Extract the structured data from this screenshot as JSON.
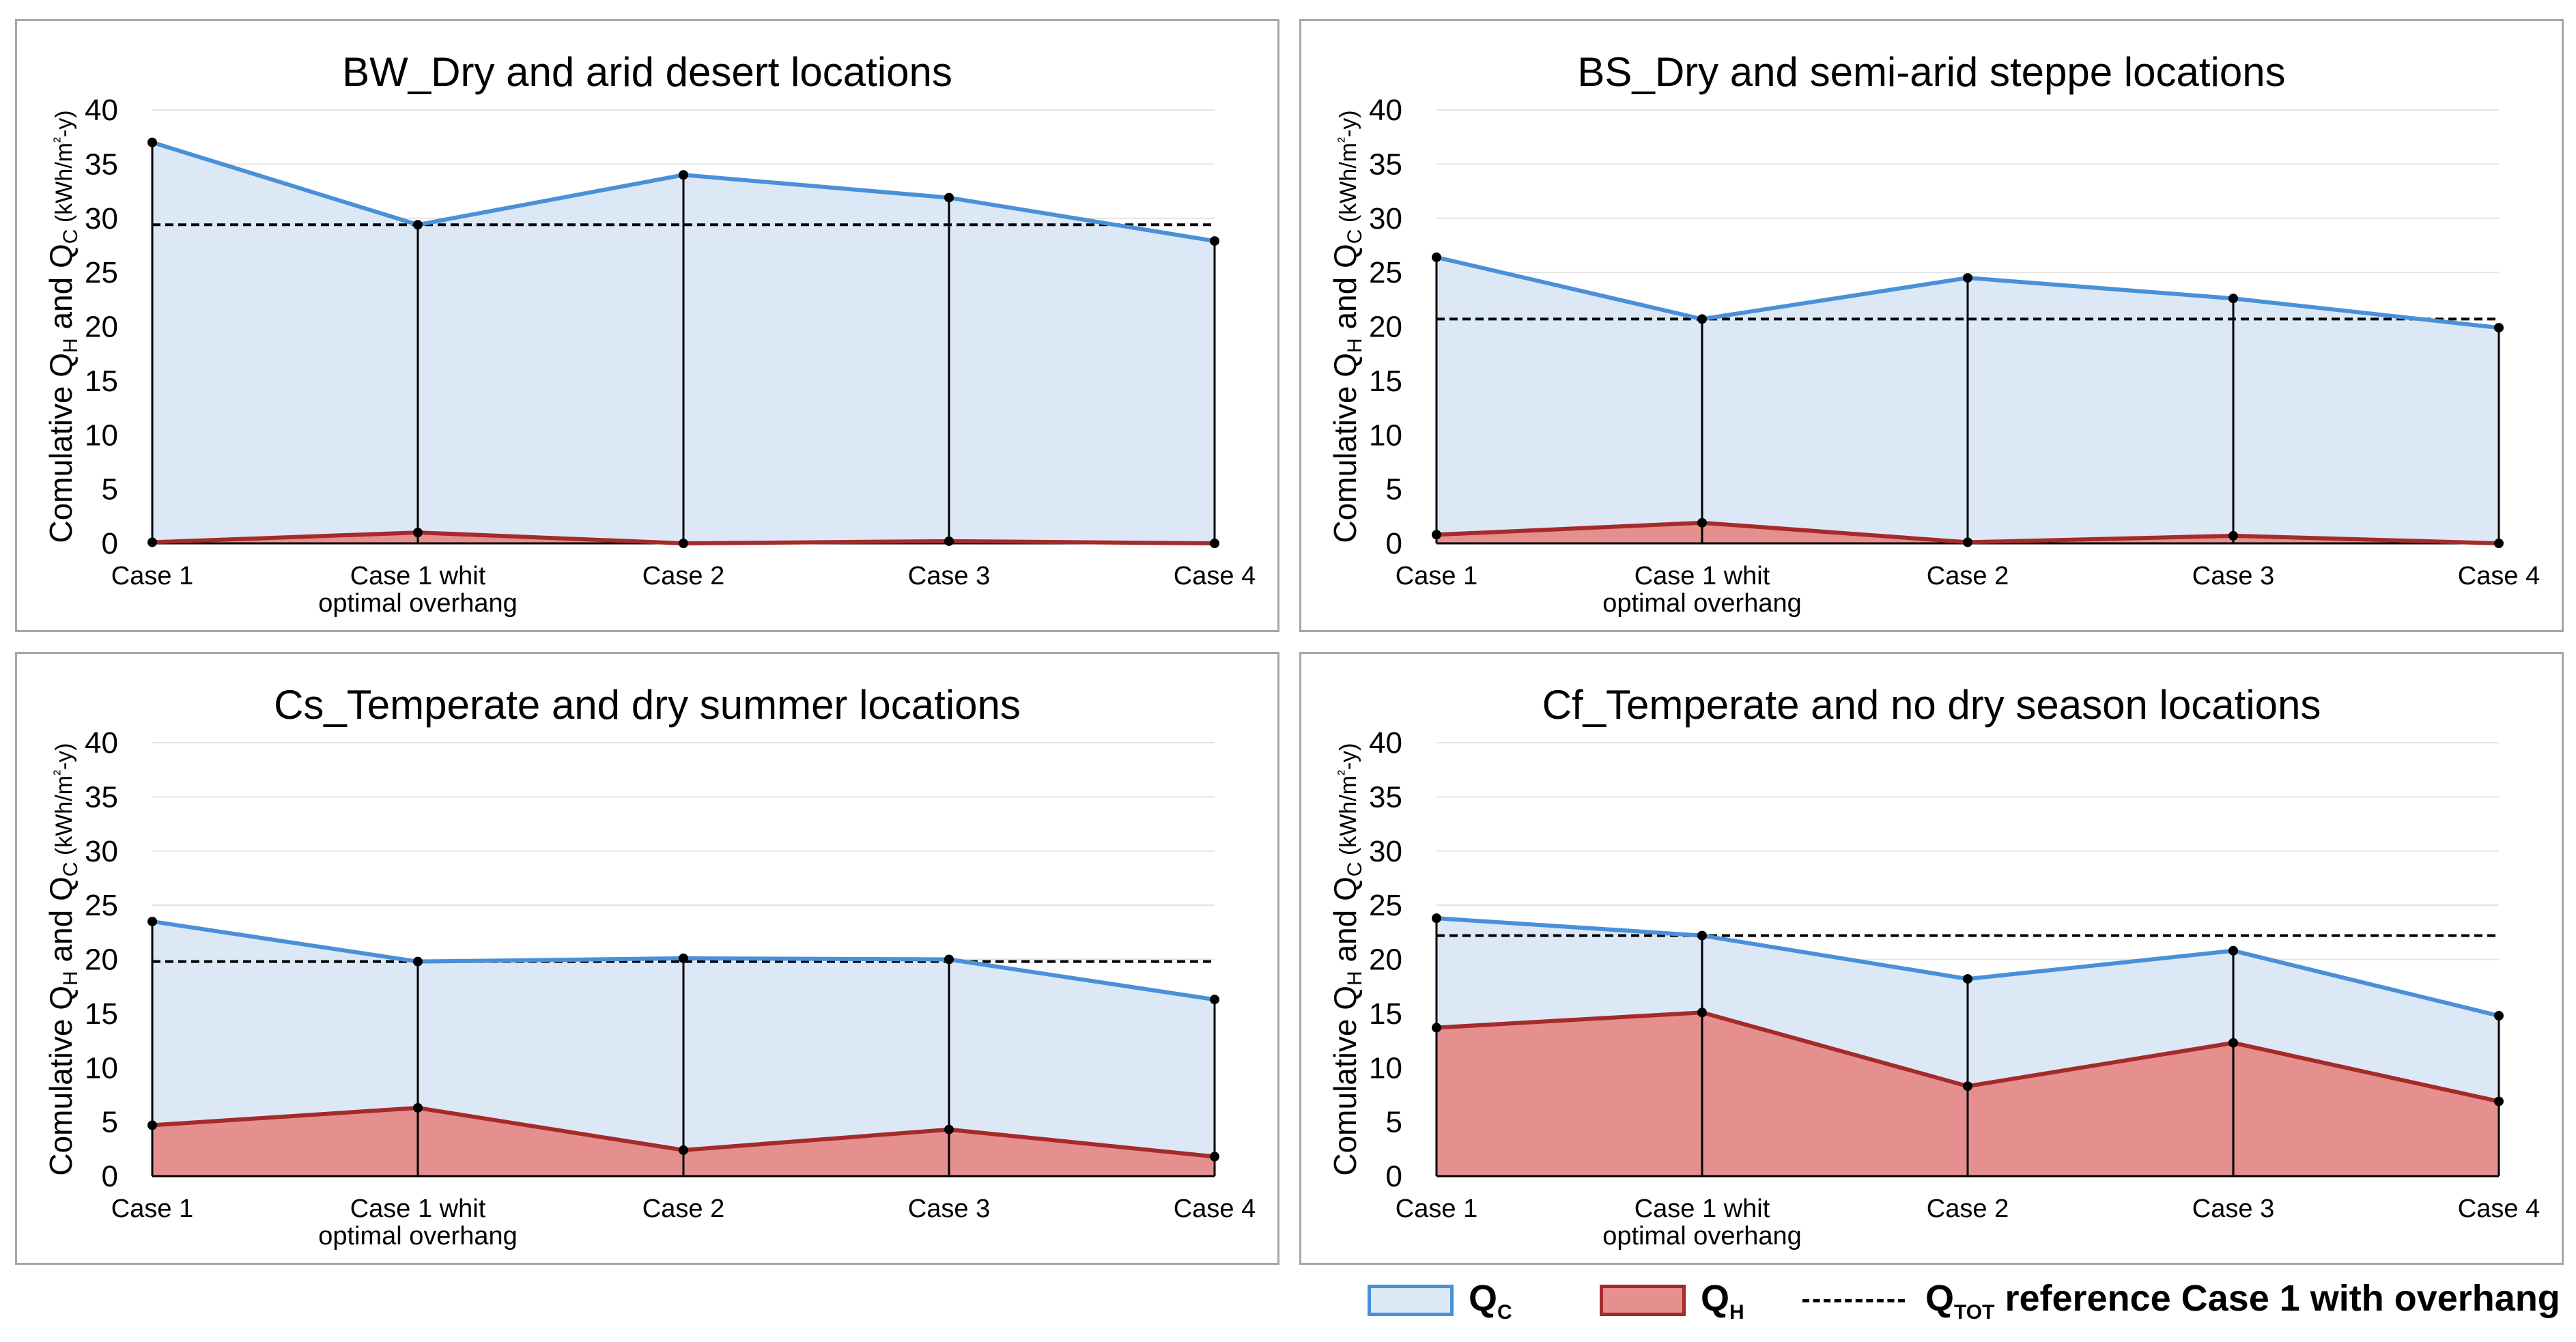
{
  "colors": {
    "qc_line": "#4a90d9",
    "qc_fill": "#dde8f6",
    "qh_line": "#a52a2a",
    "qh_fill": "#e58f8f",
    "reference": "#000000",
    "grid": "#e3e3e3",
    "border": "#a6a6a6"
  },
  "chart_data": [
    {
      "type": "area",
      "title": "BW_Dry and arid desert locations",
      "ylabel": "Comulative QH and QC (kWh/m²-y)",
      "ylabel_parts": {
        "a": "Comulative Q",
        "b": "H",
        "c": " and Q",
        "d": "C",
        "e": " (kWh/m",
        "f": "²",
        "g": "-y)"
      },
      "ylim": [
        0,
        40
      ],
      "yticks": [
        0,
        5,
        10,
        15,
        20,
        25,
        30,
        35,
        40
      ],
      "categories": [
        [
          "Case 1"
        ],
        [
          "Case 1 whit",
          "optimal overhang"
        ],
        [
          "Case 2"
        ],
        [
          "Case 3"
        ],
        [
          "Case 4"
        ]
      ],
      "series": [
        {
          "name": "QC",
          "values": [
            37.0,
            29.4,
            34.0,
            31.9,
            27.9
          ]
        },
        {
          "name": "QH",
          "values": [
            0.1,
            1.0,
            0.0,
            0.2,
            0.0
          ]
        }
      ],
      "reference": 29.4,
      "grid": true
    },
    {
      "type": "area",
      "title": "BS_Dry and semi-arid steppe locations",
      "ylabel": "Comulative QH and QC (kWh/m²-y)",
      "ylabel_parts": {
        "a": "Comulative Q",
        "b": "H",
        "c": " and Q",
        "d": "C",
        "e": " (kWh/m",
        "f": "²",
        "g": "-y)"
      },
      "ylim": [
        0,
        40
      ],
      "yticks": [
        0,
        5,
        10,
        15,
        20,
        25,
        30,
        35,
        40
      ],
      "categories": [
        [
          "Case 1"
        ],
        [
          "Case 1 whit",
          "optimal overhang"
        ],
        [
          "Case 2"
        ],
        [
          "Case 3"
        ],
        [
          "Case 4"
        ]
      ],
      "series": [
        {
          "name": "QC",
          "values": [
            26.4,
            20.7,
            24.5,
            22.6,
            19.9
          ]
        },
        {
          "name": "QH",
          "values": [
            0.8,
            1.9,
            0.1,
            0.7,
            0.0
          ]
        }
      ],
      "reference": 20.7,
      "grid": true
    },
    {
      "type": "area",
      "title": "Cs_Temperate and dry summer locations",
      "ylabel": "Comulative QH and QC (kWh/m²-y)",
      "ylabel_parts": {
        "a": "Comulative Q",
        "b": "H",
        "c": " and Q",
        "d": "C",
        "e": " (kWh/m",
        "f": "²",
        "g": "-y)"
      },
      "ylim": [
        0,
        40
      ],
      "yticks": [
        0,
        5,
        10,
        15,
        20,
        25,
        30,
        35,
        40
      ],
      "categories": [
        [
          "Case 1"
        ],
        [
          "Case 1 whit",
          "optimal overhang"
        ],
        [
          "Case 2"
        ],
        [
          "Case 3"
        ],
        [
          "Case 4"
        ]
      ],
      "series": [
        {
          "name": "QC",
          "values": [
            23.5,
            19.8,
            20.1,
            20.0,
            16.3
          ]
        },
        {
          "name": "QH",
          "values": [
            4.7,
            6.3,
            2.4,
            4.3,
            1.8
          ]
        }
      ],
      "reference": 19.8,
      "grid": true
    },
    {
      "type": "area",
      "title": "Cf_Temperate and no dry season locations",
      "ylabel": "Comulative QH and QC (kWh/m²-y)",
      "ylabel_parts": {
        "a": "Comulative Q",
        "b": "H",
        "c": " and Q",
        "d": "C",
        "e": " (kWh/m",
        "f": "²",
        "g": "-y)"
      },
      "ylim": [
        0,
        40
      ],
      "yticks": [
        0,
        5,
        10,
        15,
        20,
        25,
        30,
        35,
        40
      ],
      "categories": [
        [
          "Case 1"
        ],
        [
          "Case 1 whit",
          "optimal overhang"
        ],
        [
          "Case 2"
        ],
        [
          "Case 3"
        ],
        [
          "Case 4"
        ]
      ],
      "series": [
        {
          "name": "QC",
          "values": [
            23.8,
            22.2,
            18.2,
            20.8,
            14.8
          ]
        },
        {
          "name": "QH",
          "values": [
            13.7,
            15.1,
            8.3,
            12.3,
            6.9
          ]
        }
      ],
      "reference": 22.2,
      "grid": true
    }
  ],
  "legend": {
    "qc": {
      "main": "Q",
      "sub": "C"
    },
    "qh": {
      "main": "Q",
      "sub": "H"
    },
    "ref": {
      "main": "Q",
      "sub": "TOT",
      "rest": " reference Case 1 with overhang"
    }
  }
}
